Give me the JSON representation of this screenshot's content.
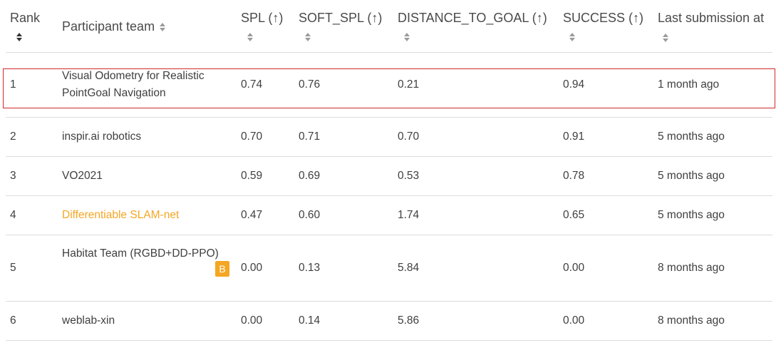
{
  "headers": {
    "rank": "Rank",
    "participant": "Participant team",
    "spl": "SPL (↑)",
    "soft_spl": "SOFT_SPL (↑)",
    "distance": "DISTANCE_TO_GOAL (↑)",
    "success": "SUCCESS (↑)",
    "last_submission": "Last submission at"
  },
  "rows": [
    {
      "rank": "1",
      "team": "Visual Odometry for Realistic PointGoal Navigation",
      "spl": "0.74",
      "soft_spl": "0.76",
      "distance": "0.21",
      "success": "0.94",
      "last": "1 month ago"
    },
    {
      "rank": "2",
      "team": "inspir.ai robotics",
      "spl": "0.70",
      "soft_spl": "0.71",
      "distance": "0.70",
      "success": "0.91",
      "last": "5 months ago"
    },
    {
      "rank": "3",
      "team": "VO2021",
      "spl": "0.59",
      "soft_spl": "0.69",
      "distance": "0.53",
      "success": "0.78",
      "last": "5 months ago"
    },
    {
      "rank": "4",
      "team": "Differentiable SLAM-net",
      "spl": "0.47",
      "soft_spl": "0.60",
      "distance": "1.74",
      "success": "0.65",
      "last": "5 months ago"
    },
    {
      "rank": "5",
      "team": "Habitat Team (RGBD+DD-PPO)",
      "badge": "B",
      "spl": "0.00",
      "soft_spl": "0.13",
      "distance": "5.84",
      "success": "0.00",
      "last": "8 months ago"
    },
    {
      "rank": "6",
      "team": "weblab-xin",
      "spl": "0.00",
      "soft_spl": "0.14",
      "distance": "5.86",
      "success": "0.00",
      "last": "8 months ago"
    }
  ],
  "colors": {
    "highlight_border": "#cf2a2a",
    "baseline_accent": "#f5a623"
  }
}
